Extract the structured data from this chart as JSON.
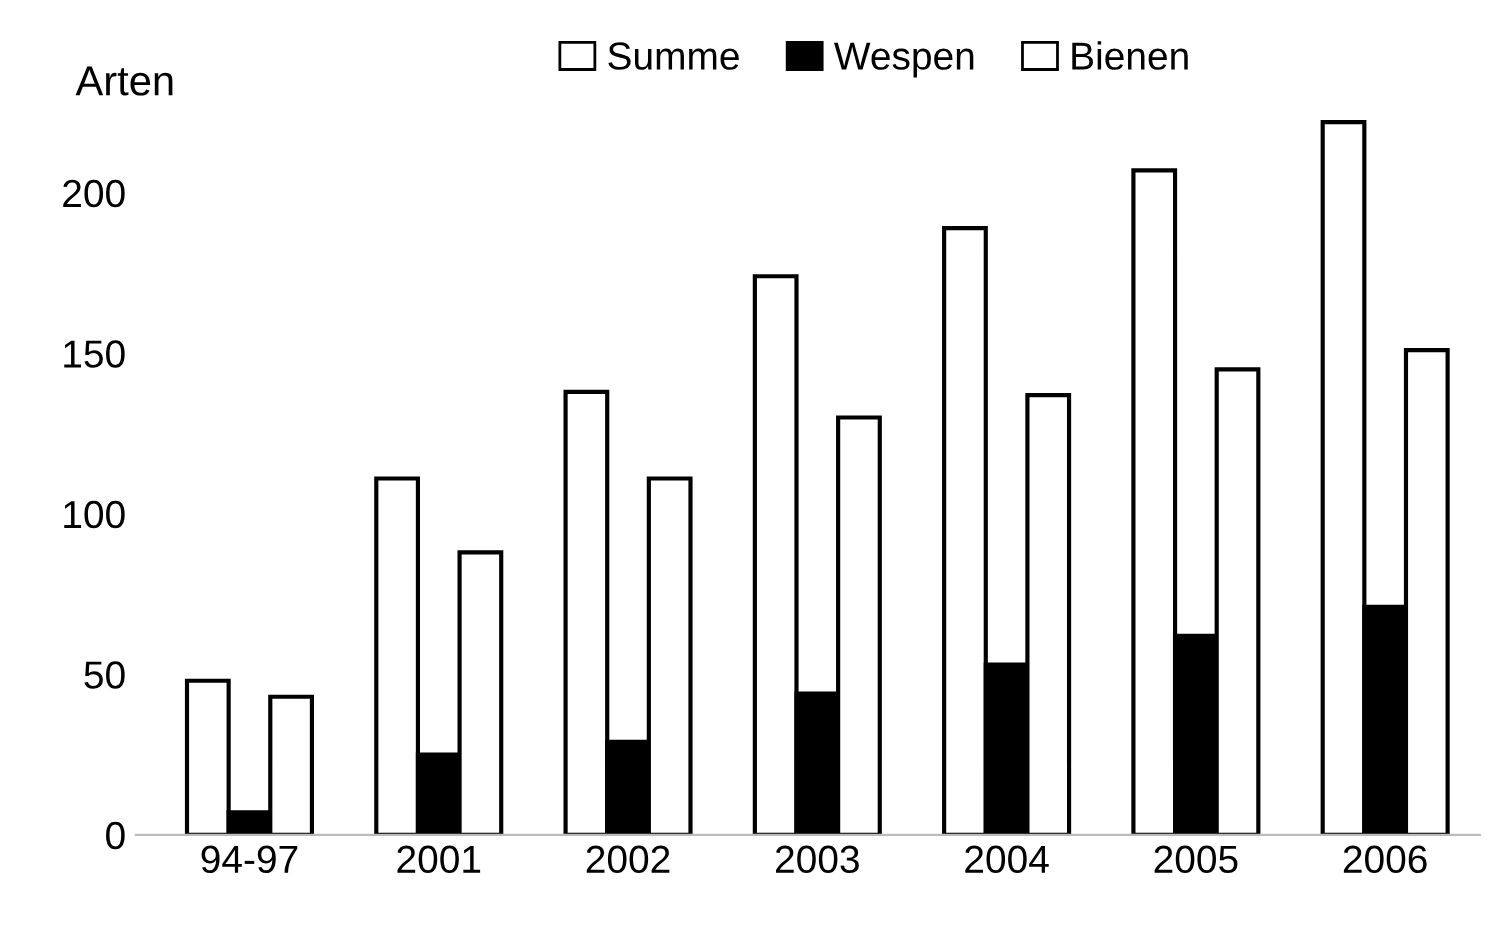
{
  "chart_data": {
    "type": "bar",
    "ylabel": "Arten",
    "categories": [
      "94-97",
      "2001",
      "2002",
      "2003",
      "2004",
      "2005",
      "2006"
    ],
    "series": [
      {
        "name": "Summe",
        "color": "#ffffff",
        "values": [
          48,
          111,
          138,
          174,
          189,
          207,
          222
        ]
      },
      {
        "name": "Wespen",
        "color": "#000000",
        "values": [
          7,
          25,
          29,
          44,
          53,
          62,
          71
        ]
      },
      {
        "name": "Bienen",
        "color": "#ffffff",
        "values": [
          43,
          88,
          111,
          130,
          137,
          145,
          151
        ]
      }
    ],
    "ylim": [
      0,
      225
    ],
    "yticks": [
      0,
      50,
      100,
      150,
      200
    ],
    "grid": false,
    "legend": "top"
  }
}
